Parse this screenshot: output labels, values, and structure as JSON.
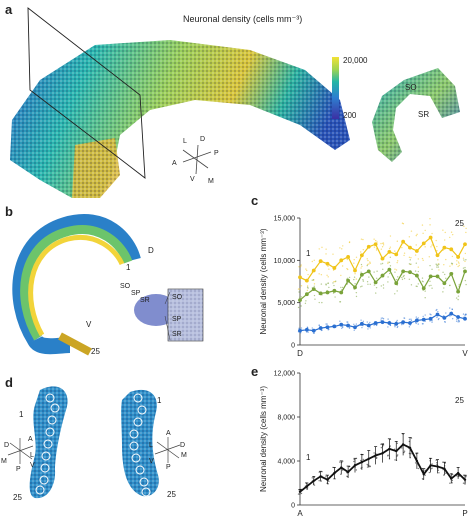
{
  "panels": {
    "a": {
      "letter": "a",
      "colorbar_title": "Neuronal density (cells mm⁻³)",
      "colorbar_max": "20,000",
      "colorbar_min": "200",
      "slice_labels": [
        "SO",
        "SR"
      ],
      "orientation": [
        "L",
        "D",
        "A",
        "P",
        "V",
        "M"
      ]
    },
    "b": {
      "letter": "b",
      "arc_labels": [
        "D",
        "1",
        "V",
        "25"
      ],
      "layer_labels": [
        "SO",
        "SP",
        "SR"
      ],
      "inset_labels": [
        "SO",
        "SP",
        "SR"
      ]
    },
    "c": {
      "letter": "c"
    },
    "d": {
      "letter": "d",
      "left_labels": [
        "1",
        "25"
      ],
      "right_labels": [
        "1",
        "25"
      ],
      "left_orientation": [
        "A",
        "D",
        "L",
        "M",
        "V",
        "P"
      ],
      "right_orientation": [
        "A",
        "D",
        "M",
        "L",
        "V",
        "P"
      ]
    },
    "e": {
      "letter": "e"
    }
  },
  "colors": {
    "yellow_series": "#f0c419",
    "green_series": "#7aa33a",
    "blue_series": "#2a6fd1",
    "black_series": "#111111",
    "colormap_low": "#3b2fa3",
    "colormap_mid": "#25b5a6",
    "colormap_high": "#f2e235"
  },
  "chart_data": [
    {
      "type": "line",
      "panel": "c",
      "ylabel": "Neuronal density (cells mm⁻³)",
      "ylim": [
        0,
        15000
      ],
      "yticks": [
        "0",
        "5,000",
        "10,000",
        "15,000"
      ],
      "x_start_label": "D",
      "x_end_label": "V",
      "x": [
        1,
        2,
        3,
        4,
        5,
        6,
        7,
        8,
        9,
        10,
        11,
        12,
        13,
        14,
        15,
        16,
        17,
        18,
        19,
        20,
        21,
        22,
        23,
        24,
        25
      ],
      "annotations": [
        "1",
        "25"
      ],
      "series": [
        {
          "color": "#f0c419",
          "values": [
            8000,
            7600,
            8800,
            9900,
            9600,
            9100,
            10000,
            10400,
            8800,
            10600,
            11600,
            11900,
            10200,
            11000,
            10700,
            12200,
            11500,
            11100,
            12000,
            12700,
            10600,
            11500,
            11300,
            10400,
            11900
          ]
        },
        {
          "color": "#7aa33a",
          "values": [
            5300,
            6000,
            6600,
            6100,
            6200,
            6400,
            6200,
            7600,
            6800,
            8300,
            8700,
            7400,
            8200,
            8900,
            7300,
            8700,
            8600,
            8200,
            6700,
            8100,
            8100,
            7300,
            8400,
            6300,
            8700
          ]
        },
        {
          "color": "#2a6fd1",
          "values": [
            1700,
            1800,
            1700,
            2000,
            2100,
            2200,
            2400,
            2300,
            2100,
            2500,
            2300,
            2600,
            2700,
            2600,
            2500,
            2700,
            2600,
            2900,
            3000,
            3100,
            3600,
            3200,
            3700,
            3300,
            3100
          ]
        }
      ]
    },
    {
      "type": "line",
      "panel": "e",
      "ylabel": "Neuronal density (cells mm⁻³)",
      "ylim": [
        0,
        12000
      ],
      "yticks": [
        "0",
        "4,000",
        "8,000",
        "12,000"
      ],
      "x_start_label": "A",
      "x_end_label": "P",
      "x": [
        1,
        2,
        3,
        4,
        5,
        6,
        7,
        8,
        9,
        10,
        11,
        12,
        13,
        14,
        15,
        16,
        17,
        18,
        19,
        20,
        21,
        22,
        23,
        24,
        25
      ],
      "annotations": [
        "1",
        "25"
      ],
      "series": [
        {
          "color": "#111111",
          "values": [
            1200,
            1700,
            2200,
            2600,
            2300,
            2900,
            3400,
            3000,
            3600,
            3900,
            4200,
            4500,
            4700,
            5100,
            4900,
            5500,
            5200,
            4000,
            2800,
            3600,
            3500,
            3300,
            2400,
            2900,
            2300
          ]
        }
      ]
    }
  ]
}
